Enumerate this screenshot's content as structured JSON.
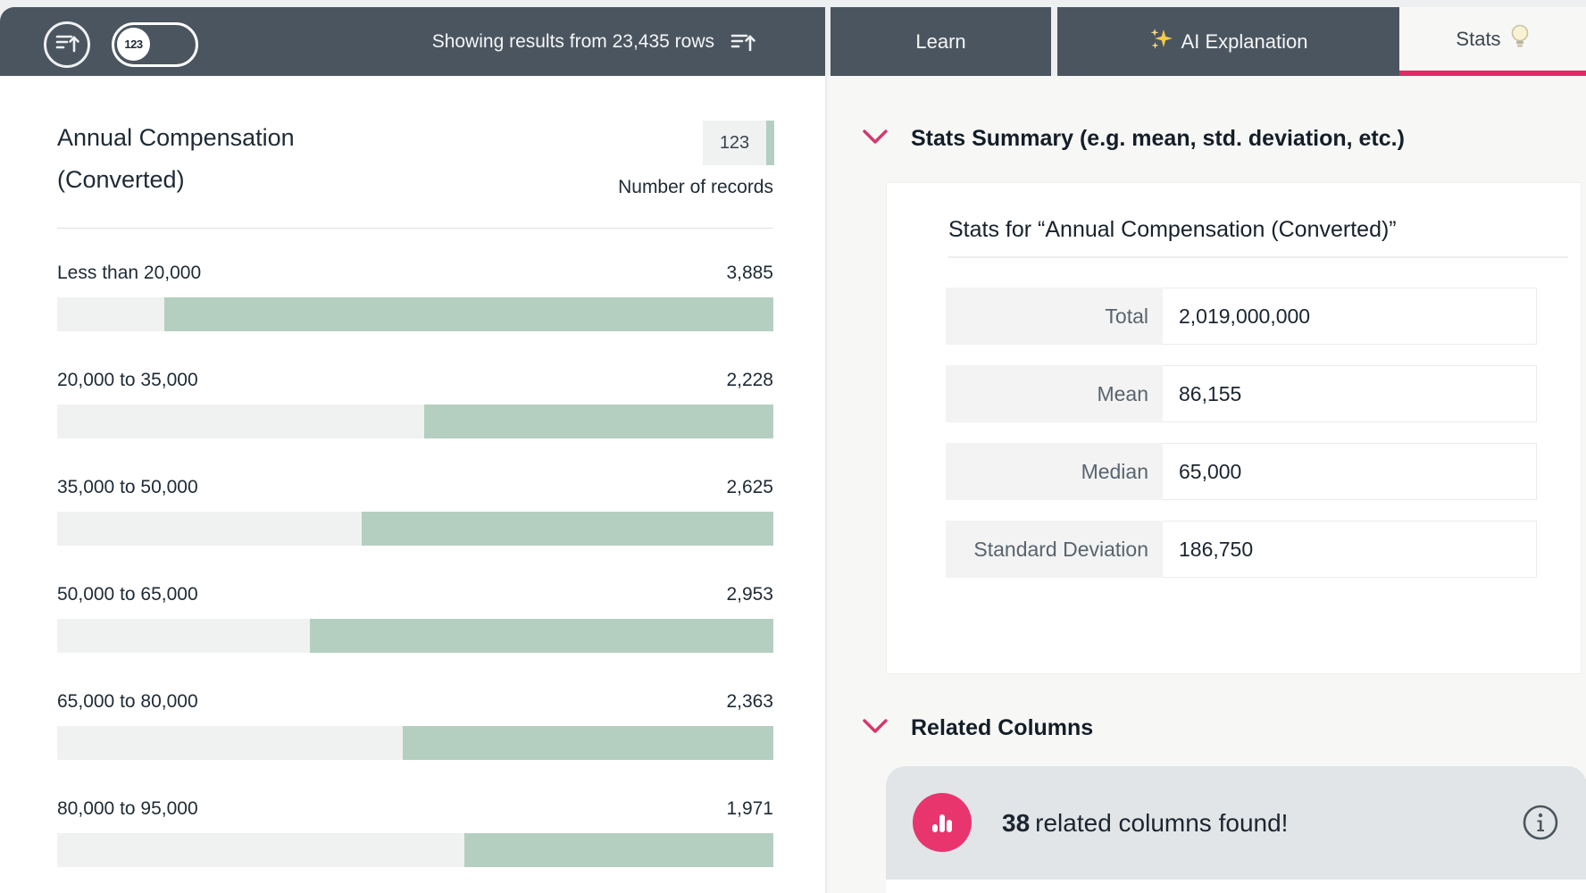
{
  "header": {
    "toggle_badge": "123",
    "results_text": "Showing results from 23,435 rows",
    "tabs": [
      {
        "label": "Learn",
        "active": false
      },
      {
        "label": "AI Explanation",
        "active": false,
        "icon": "sparkles"
      },
      {
        "label": "Stats",
        "active": true,
        "icon": "lightbulb"
      }
    ]
  },
  "chart_data": {
    "type": "bar",
    "orientation": "horizontal",
    "title": "Annual Compensation (Converted)",
    "title_line1": "Annual Compensation",
    "title_line2": "(Converted)",
    "column_type_badge": "123",
    "value_axis_label": "Number of records",
    "categories": [
      "Less than 20,000",
      "20,000 to 35,000",
      "35,000 to 50,000",
      "50,000 to 65,000",
      "65,000 to 80,000",
      "80,000 to 95,000"
    ],
    "values": [
      3885,
      2228,
      2625,
      2953,
      2363,
      1971
    ],
    "value_labels": [
      "3,885",
      "2,228",
      "2,625",
      "2,953",
      "2,363",
      "1,971"
    ],
    "xlim": [
      0,
      4565
    ],
    "grid": false,
    "legend": false,
    "bar_color": "#b4cfc0",
    "track_color": "#f0f2f1"
  },
  "stats": {
    "section_title": "Stats Summary (e.g. mean, std. deviation, etc.)",
    "card_title": "Stats for “Annual Compensation (Converted)”",
    "rows": [
      {
        "label": "Total",
        "value": "2,019,000,000"
      },
      {
        "label": "Mean",
        "value": "86,155"
      },
      {
        "label": "Median",
        "value": "65,000"
      },
      {
        "label": "Standard Deviation",
        "value": "186,750"
      }
    ]
  },
  "related": {
    "section_title": "Related Columns",
    "count": "38",
    "message": "related columns found!"
  },
  "colors": {
    "header_bg": "#4b5560",
    "accent_pink": "#e12965",
    "chevron_pink": "#d6366e",
    "circle_pink": "#e8356e",
    "bar_green": "#b4cfc0",
    "right_panel_bg": "#f7f8f6",
    "banner_bg": "#e2e5e7"
  }
}
